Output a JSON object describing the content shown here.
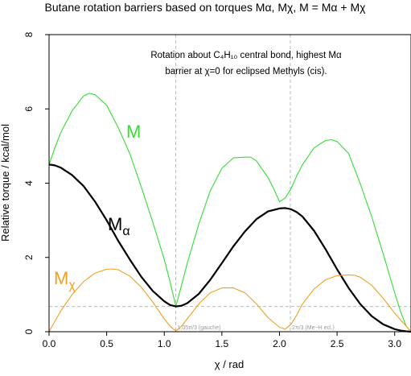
{
  "chart_data": {
    "type": "line",
    "title": "Butane rotation barriers based on torques Mα, Mχ, M =  Mα + Mχ",
    "xlabel": "χ / rad",
    "ylabel": "Relative torque / kcal/mol",
    "xlim": [
      0,
      3.1416
    ],
    "ylim": [
      0,
      8
    ],
    "x_ticks": [
      "0.0",
      "0.5",
      "1.0",
      "1.5",
      "2.0",
      "2.5",
      "3.0"
    ],
    "y_ticks": [
      "0",
      "2",
      "4",
      "6",
      "8"
    ],
    "annotation_lines": [
      "Rotation about C₄H₁₀ central bond, highest Mα",
      "barrier at χ=0 for eclipsed Methyls (cis)."
    ],
    "vertical_markers": [
      {
        "x": 1.1,
        "label": "1.05π/3 (gauche)"
      },
      {
        "x": 2.094,
        "label": "2π/3 (Me−H ecl.)"
      }
    ],
    "horizontal_marker_y": 0.68,
    "series": [
      {
        "name": "M",
        "color": "#33dd33",
        "x": [
          0,
          0.05,
          0.1,
          0.2,
          0.3,
          0.35,
          0.4,
          0.5,
          0.6,
          0.7,
          0.8,
          0.9,
          1.0,
          1.05,
          1.1,
          1.15,
          1.2,
          1.3,
          1.4,
          1.5,
          1.6,
          1.7,
          1.75,
          1.8,
          1.9,
          1.95,
          2.0,
          2.05,
          2.1,
          2.15,
          2.2,
          2.3,
          2.4,
          2.45,
          2.5,
          2.6,
          2.7,
          2.8,
          2.9,
          3.0,
          3.05,
          3.1,
          3.1416
        ],
        "values": [
          4.5,
          4.95,
          5.35,
          5.95,
          6.35,
          6.42,
          6.38,
          6.1,
          5.5,
          4.8,
          3.9,
          2.95,
          1.95,
          1.35,
          0.68,
          1.25,
          1.85,
          2.9,
          3.8,
          4.4,
          4.68,
          4.7,
          4.7,
          4.6,
          4.15,
          3.85,
          3.5,
          3.6,
          3.85,
          4.2,
          4.5,
          4.95,
          5.15,
          5.17,
          5.12,
          4.8,
          4.0,
          3.1,
          2.1,
          1.05,
          0.55,
          0.15,
          0.0
        ]
      },
      {
        "name": "Mα",
        "color": "#000000",
        "x": [
          0,
          0.05,
          0.1,
          0.2,
          0.3,
          0.4,
          0.5,
          0.6,
          0.7,
          0.8,
          0.9,
          1.0,
          1.05,
          1.1,
          1.15,
          1.2,
          1.3,
          1.4,
          1.5,
          1.6,
          1.7,
          1.8,
          1.9,
          2.0,
          2.05,
          2.1,
          2.15,
          2.2,
          2.3,
          2.4,
          2.5,
          2.6,
          2.7,
          2.8,
          2.9,
          3.0,
          3.05,
          3.1,
          3.1416
        ],
        "values": [
          4.5,
          4.48,
          4.42,
          4.22,
          3.92,
          3.5,
          3.0,
          2.45,
          1.95,
          1.48,
          1.1,
          0.82,
          0.72,
          0.68,
          0.7,
          0.77,
          1.02,
          1.4,
          1.85,
          2.3,
          2.7,
          3.03,
          3.24,
          3.32,
          3.33,
          3.3,
          3.22,
          3.1,
          2.72,
          2.22,
          1.68,
          1.18,
          0.75,
          0.42,
          0.2,
          0.07,
          0.03,
          0.01,
          0.0
        ]
      },
      {
        "name": "Mχ",
        "color": "#f0a020",
        "x": [
          0,
          0.1,
          0.2,
          0.3,
          0.4,
          0.5,
          0.55,
          0.6,
          0.7,
          0.8,
          0.9,
          1.0,
          1.05,
          1.1,
          1.15,
          1.2,
          1.3,
          1.4,
          1.5,
          1.6,
          1.7,
          1.8,
          1.9,
          2.0,
          2.05,
          2.1,
          2.15,
          2.2,
          2.3,
          2.4,
          2.5,
          2.6,
          2.65,
          2.7,
          2.8,
          2.9,
          3.0,
          3.1,
          3.1416
        ],
        "values": [
          0.0,
          0.55,
          1.0,
          1.35,
          1.58,
          1.68,
          1.69,
          1.67,
          1.5,
          1.2,
          0.8,
          0.35,
          0.15,
          0.02,
          0.15,
          0.35,
          0.75,
          1.05,
          1.18,
          1.18,
          1.05,
          0.75,
          0.38,
          0.12,
          0.07,
          0.2,
          0.45,
          0.75,
          1.15,
          1.4,
          1.51,
          1.53,
          1.52,
          1.47,
          1.25,
          0.9,
          0.5,
          0.15,
          0.0
        ]
      }
    ]
  }
}
